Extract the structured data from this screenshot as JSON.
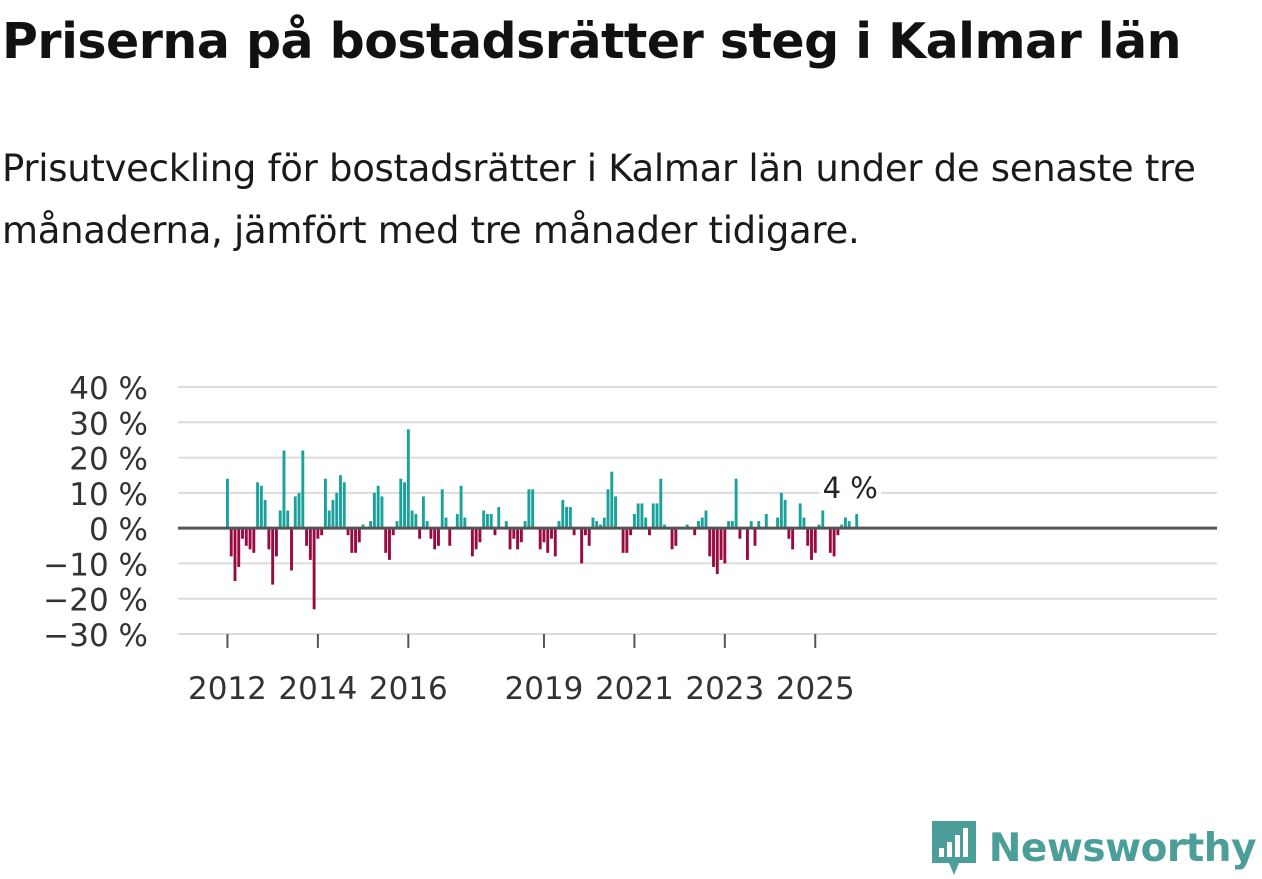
{
  "header": {
    "title": "Priserna på bostadsrätter steg i Kalmar län",
    "subtitle": "Prisutveckling för bostadsrätter i Kalmar län under de senaste tre månaderna, jämfört med tre månader tidigare."
  },
  "brand": {
    "name": "Newsworthy",
    "icon": "newsworthy-logo-icon"
  },
  "colors": {
    "positive": "#1aa29a",
    "negative": "#9a0a42",
    "grid": "#dcdcdc",
    "zero_line": "#555555",
    "brand": "#4b9e99"
  },
  "chart_data": {
    "type": "bar",
    "title": "Priserna på bostadsrätter steg i Kalmar län",
    "xlabel": "",
    "ylabel": "",
    "x_start": {
      "year": 2012,
      "month": 1
    },
    "ylim": [
      -30,
      40
    ],
    "yticks": [
      40,
      30,
      20,
      10,
      0,
      -10,
      -20,
      -30
    ],
    "ytick_labels": [
      "40 %",
      "30 %",
      "20 %",
      "10 %",
      "0 %",
      "−10 %",
      "−20 %",
      "−30 %"
    ],
    "xticks": [
      {
        "year": 2012,
        "label": "2012"
      },
      {
        "year": 2014,
        "label": "2014"
      },
      {
        "year": 2016,
        "label": "2016"
      },
      {
        "year": 2019,
        "label": "2019"
      },
      {
        "year": 2021,
        "label": "2021"
      },
      {
        "year": 2023,
        "label": "2023"
      },
      {
        "year": 2025,
        "label": "2025"
      }
    ],
    "annotation": {
      "label": "4 %",
      "value": 4
    },
    "values": [
      14,
      -8,
      -15,
      -11,
      -3,
      -5,
      -6,
      -7,
      13,
      12,
      8,
      -6,
      -16,
      -8,
      5,
      22,
      5,
      -12,
      9,
      10,
      22,
      -5,
      -9,
      -23,
      -3,
      -2,
      14,
      5,
      8,
      10,
      15,
      13,
      -2,
      -7,
      -7,
      -4,
      1,
      0,
      2,
      10,
      12,
      9,
      -7,
      -9,
      -2,
      2,
      14,
      13,
      28,
      5,
      4,
      -3,
      9,
      2,
      -3,
      -6,
      -5,
      11,
      3,
      -5,
      0,
      4,
      12,
      3,
      0,
      -8,
      -6,
      -4,
      5,
      4,
      4,
      -2,
      6,
      0,
      2,
      -6,
      -3,
      -6,
      -4,
      2,
      11,
      11,
      0,
      -6,
      -4,
      -7,
      -3,
      -8,
      2,
      8,
      6,
      6,
      -2,
      0,
      -10,
      -2,
      -5,
      3,
      2,
      1,
      3,
      11,
      16,
      9,
      0,
      -7,
      -7,
      -2,
      4,
      7,
      7,
      3,
      -2,
      7,
      7,
      14,
      1,
      0,
      -6,
      -5,
      0,
      0,
      1,
      0,
      -2,
      2,
      3,
      5,
      -8,
      -11,
      -13,
      -9,
      -10,
      2,
      2,
      14,
      -3,
      0,
      -9,
      2,
      -5,
      2,
      0,
      4,
      0,
      0,
      3,
      10,
      8,
      -3,
      -6,
      0,
      7,
      3,
      -5,
      -9,
      -7,
      1,
      5,
      0,
      -7,
      -8,
      -2,
      1,
      3,
      2,
      0,
      4
    ]
  }
}
